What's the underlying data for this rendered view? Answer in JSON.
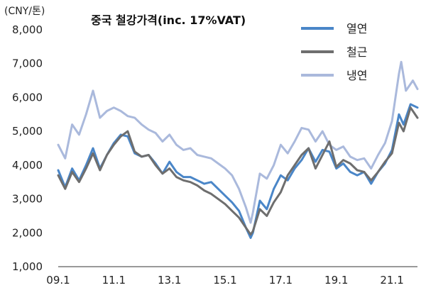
{
  "chart_data": {
    "type": "line",
    "title": "중국 철강가격(inc.  17%VAT)",
    "unit_label": "(CNY/톤)",
    "x_ticks": [
      "09.1",
      "11.1",
      "13.1",
      "15.1",
      "17.1",
      "19.1",
      "21.1"
    ],
    "x_range": [
      "2009-01",
      "2021-12"
    ],
    "y_ticks": [
      "1,000",
      "2,000",
      "3,000",
      "4,000",
      "5,000",
      "6,000",
      "7,000",
      "8,000"
    ],
    "ylim": [
      1000,
      8000
    ],
    "grid": false,
    "legend_position": "top-right",
    "series": [
      {
        "name": "열연",
        "color": "#4a86c8",
        "points": [
          [
            "2009-01",
            3850
          ],
          [
            "2009-04",
            3350
          ],
          [
            "2009-07",
            3900
          ],
          [
            "2009-10",
            3550
          ],
          [
            "2010-01",
            4000
          ],
          [
            "2010-04",
            4500
          ],
          [
            "2010-07",
            3900
          ],
          [
            "2010-10",
            4300
          ],
          [
            "2011-01",
            4650
          ],
          [
            "2011-04",
            4900
          ],
          [
            "2011-07",
            4850
          ],
          [
            "2011-10",
            4350
          ],
          [
            "2012-01",
            4250
          ],
          [
            "2012-04",
            4300
          ],
          [
            "2012-07",
            4050
          ],
          [
            "2012-10",
            3750
          ],
          [
            "2013-01",
            4100
          ],
          [
            "2013-04",
            3800
          ],
          [
            "2013-07",
            3650
          ],
          [
            "2013-10",
            3650
          ],
          [
            "2014-01",
            3550
          ],
          [
            "2014-04",
            3450
          ],
          [
            "2014-07",
            3500
          ],
          [
            "2014-10",
            3300
          ],
          [
            "2015-01",
            3100
          ],
          [
            "2015-04",
            2900
          ],
          [
            "2015-07",
            2650
          ],
          [
            "2015-10",
            2150
          ],
          [
            "2015-12",
            1850
          ],
          [
            "2016-01",
            2000
          ],
          [
            "2016-04",
            2950
          ],
          [
            "2016-07",
            2700
          ],
          [
            "2016-10",
            3300
          ],
          [
            "2017-01",
            3700
          ],
          [
            "2017-04",
            3550
          ],
          [
            "2017-07",
            3900
          ],
          [
            "2017-10",
            4150
          ],
          [
            "2018-01",
            4500
          ],
          [
            "2018-04",
            4100
          ],
          [
            "2018-07",
            4450
          ],
          [
            "2018-10",
            4400
          ],
          [
            "2019-01",
            3900
          ],
          [
            "2019-04",
            4050
          ],
          [
            "2019-07",
            3800
          ],
          [
            "2019-10",
            3700
          ],
          [
            "2020-01",
            3800
          ],
          [
            "2020-04",
            3450
          ],
          [
            "2020-07",
            3800
          ],
          [
            "2020-10",
            4050
          ],
          [
            "2021-01",
            4450
          ],
          [
            "2021-04",
            5500
          ],
          [
            "2021-06",
            5200
          ],
          [
            "2021-09",
            5800
          ],
          [
            "2021-12",
            5700
          ]
        ]
      },
      {
        "name": "철근",
        "color": "#6e6e6e",
        "points": [
          [
            "2009-01",
            3700
          ],
          [
            "2009-04",
            3300
          ],
          [
            "2009-07",
            3800
          ],
          [
            "2009-10",
            3500
          ],
          [
            "2010-01",
            3900
          ],
          [
            "2010-04",
            4350
          ],
          [
            "2010-07",
            3850
          ],
          [
            "2010-10",
            4300
          ],
          [
            "2011-01",
            4600
          ],
          [
            "2011-04",
            4850
          ],
          [
            "2011-07",
            5000
          ],
          [
            "2011-10",
            4400
          ],
          [
            "2012-01",
            4250
          ],
          [
            "2012-04",
            4300
          ],
          [
            "2012-07",
            4000
          ],
          [
            "2012-10",
            3750
          ],
          [
            "2013-01",
            3900
          ],
          [
            "2013-04",
            3650
          ],
          [
            "2013-07",
            3550
          ],
          [
            "2013-10",
            3500
          ],
          [
            "2014-01",
            3400
          ],
          [
            "2014-04",
            3250
          ],
          [
            "2014-07",
            3150
          ],
          [
            "2014-10",
            3000
          ],
          [
            "2015-01",
            2850
          ],
          [
            "2015-04",
            2650
          ],
          [
            "2015-07",
            2450
          ],
          [
            "2015-10",
            2150
          ],
          [
            "2015-12",
            1950
          ],
          [
            "2016-01",
            2050
          ],
          [
            "2016-04",
            2700
          ],
          [
            "2016-07",
            2500
          ],
          [
            "2016-10",
            2900
          ],
          [
            "2017-01",
            3200
          ],
          [
            "2017-04",
            3700
          ],
          [
            "2017-07",
            4000
          ],
          [
            "2017-10",
            4300
          ],
          [
            "2018-01",
            4500
          ],
          [
            "2018-04",
            3900
          ],
          [
            "2018-07",
            4300
          ],
          [
            "2018-10",
            4700
          ],
          [
            "2019-01",
            3950
          ],
          [
            "2019-04",
            4150
          ],
          [
            "2019-07",
            4050
          ],
          [
            "2019-10",
            3850
          ],
          [
            "2020-01",
            3800
          ],
          [
            "2020-04",
            3550
          ],
          [
            "2020-07",
            3800
          ],
          [
            "2020-10",
            4100
          ],
          [
            "2021-01",
            4350
          ],
          [
            "2021-04",
            5250
          ],
          [
            "2021-06",
            5000
          ],
          [
            "2021-09",
            5700
          ],
          [
            "2021-12",
            5400
          ]
        ]
      },
      {
        "name": "냉연",
        "color": "#aab9dc",
        "points": [
          [
            "2009-01",
            4600
          ],
          [
            "2009-04",
            4200
          ],
          [
            "2009-07",
            5200
          ],
          [
            "2009-10",
            4900
          ],
          [
            "2010-01",
            5500
          ],
          [
            "2010-04",
            6200
          ],
          [
            "2010-07",
            5400
          ],
          [
            "2010-10",
            5600
          ],
          [
            "2011-01",
            5700
          ],
          [
            "2011-04",
            5600
          ],
          [
            "2011-07",
            5450
          ],
          [
            "2011-10",
            5400
          ],
          [
            "2012-01",
            5200
          ],
          [
            "2012-04",
            5050
          ],
          [
            "2012-07",
            4950
          ],
          [
            "2012-10",
            4700
          ],
          [
            "2013-01",
            4900
          ],
          [
            "2013-04",
            4600
          ],
          [
            "2013-07",
            4450
          ],
          [
            "2013-10",
            4500
          ],
          [
            "2014-01",
            4300
          ],
          [
            "2014-04",
            4250
          ],
          [
            "2014-07",
            4200
          ],
          [
            "2014-10",
            4050
          ],
          [
            "2015-01",
            3900
          ],
          [
            "2015-04",
            3700
          ],
          [
            "2015-07",
            3300
          ],
          [
            "2015-10",
            2750
          ],
          [
            "2015-12",
            2300
          ],
          [
            "2016-01",
            2600
          ],
          [
            "2016-04",
            3750
          ],
          [
            "2016-07",
            3600
          ],
          [
            "2016-10",
            4000
          ],
          [
            "2017-01",
            4600
          ],
          [
            "2017-04",
            4350
          ],
          [
            "2017-07",
            4700
          ],
          [
            "2017-10",
            5100
          ],
          [
            "2018-01",
            5050
          ],
          [
            "2018-04",
            4700
          ],
          [
            "2018-07",
            5000
          ],
          [
            "2018-10",
            4600
          ],
          [
            "2019-01",
            4450
          ],
          [
            "2019-04",
            4550
          ],
          [
            "2019-07",
            4250
          ],
          [
            "2019-10",
            4150
          ],
          [
            "2020-01",
            4200
          ],
          [
            "2020-04",
            3900
          ],
          [
            "2020-07",
            4300
          ],
          [
            "2020-10",
            4650
          ],
          [
            "2021-01",
            5300
          ],
          [
            "2021-04",
            6700
          ],
          [
            "2021-05",
            7050
          ],
          [
            "2021-07",
            6200
          ],
          [
            "2021-10",
            6500
          ],
          [
            "2021-12",
            6250
          ]
        ]
      }
    ]
  }
}
